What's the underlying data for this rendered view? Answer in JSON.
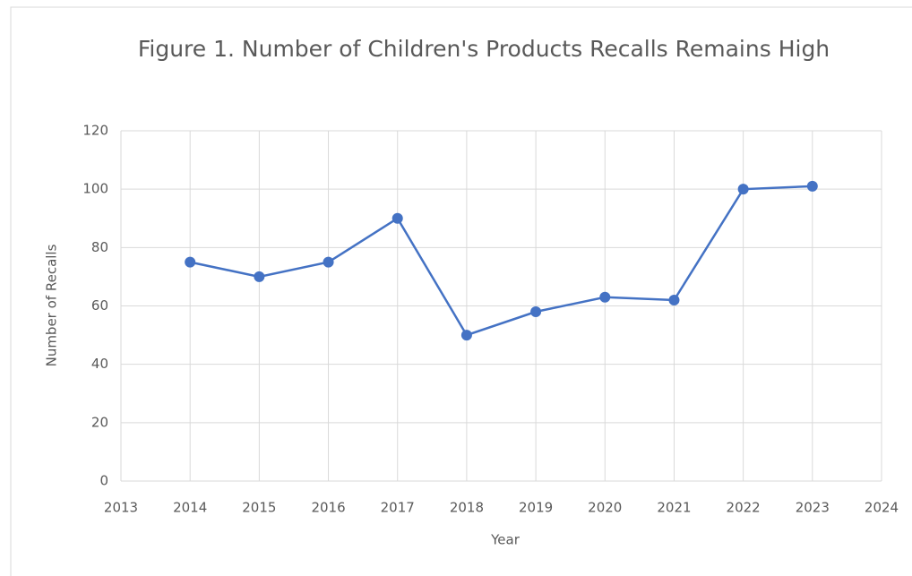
{
  "chart_data": {
    "type": "line",
    "title": "Figure 1. Number of Children's Products Recalls Remains High",
    "x_label": "Year",
    "y_label": "Number of Recalls",
    "x": [
      2014,
      2015,
      2016,
      2017,
      2018,
      2019,
      2020,
      2021,
      2022,
      2023
    ],
    "series": [
      {
        "name": "Recalls",
        "color": "#4472c4",
        "values": [
          75,
          70,
          75,
          90,
          50,
          58,
          63,
          62,
          100,
          101
        ]
      }
    ],
    "xlim": [
      2013,
      2024
    ],
    "xticks": [
      2013,
      2014,
      2015,
      2016,
      2017,
      2018,
      2019,
      2020,
      2021,
      2022,
      2023,
      2024
    ],
    "ylim": [
      0,
      120
    ],
    "yticks": [
      0,
      20,
      40,
      60,
      80,
      100,
      120
    ],
    "grid": true
  }
}
